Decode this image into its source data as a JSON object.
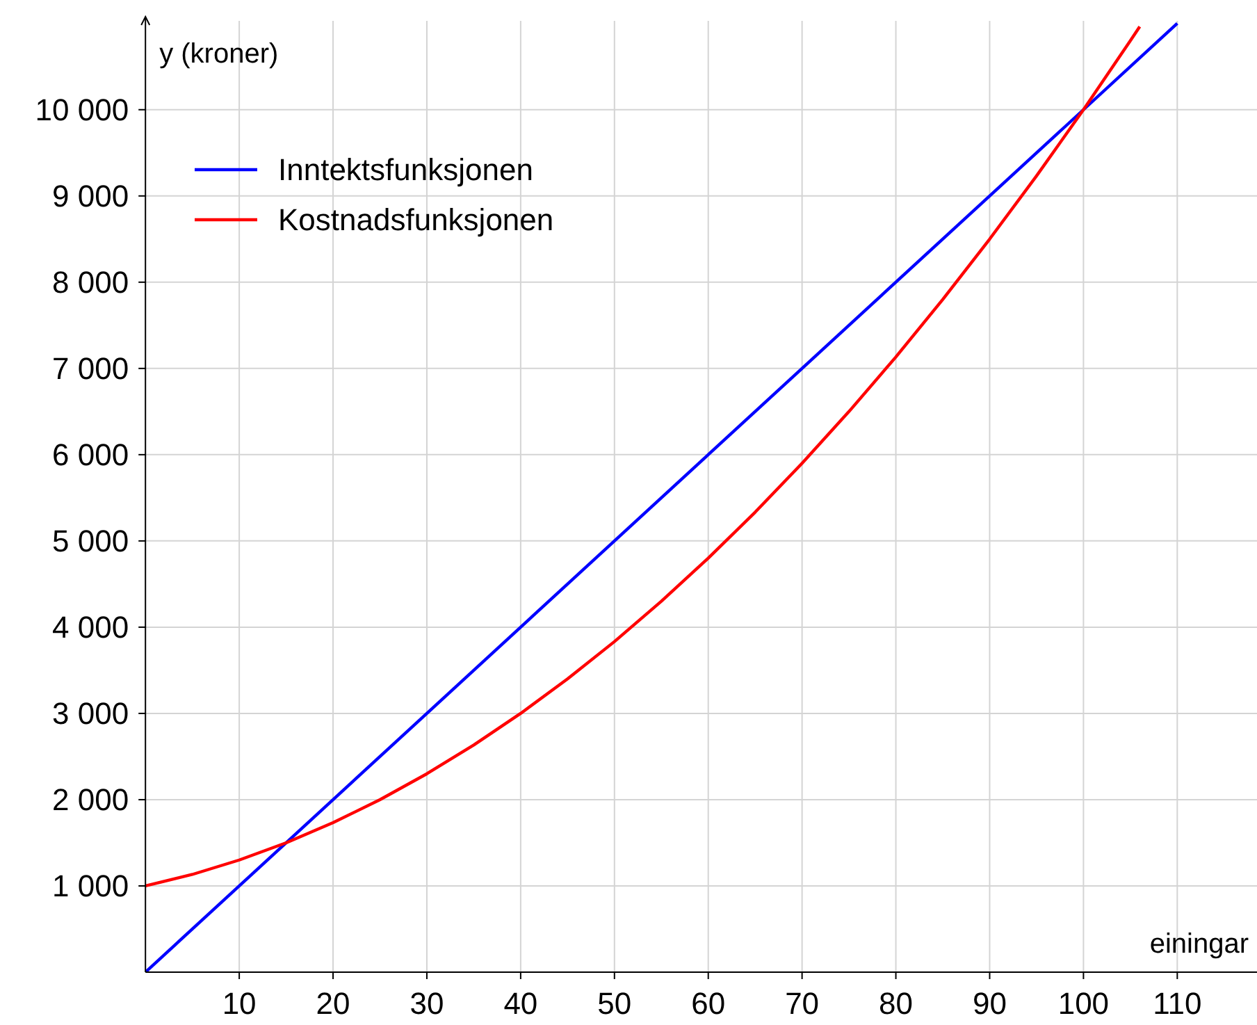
{
  "chart_data": {
    "type": "line",
    "xlabel": "einingar",
    "ylabel": "y  (kroner)",
    "xlim": [
      0,
      118.5
    ],
    "ylim": [
      0,
      11030
    ],
    "xticks": [
      10,
      20,
      30,
      40,
      50,
      60,
      70,
      80,
      90,
      100,
      110
    ],
    "yticks": [
      {
        "value": 1000,
        "label": "1 000"
      },
      {
        "value": 2000,
        "label": "2 000"
      },
      {
        "value": 3000,
        "label": "3 000"
      },
      {
        "value": 4000,
        "label": "4 000"
      },
      {
        "value": 5000,
        "label": "5 000"
      },
      {
        "value": 6000,
        "label": "6 000"
      },
      {
        "value": 7000,
        "label": "7 000"
      },
      {
        "value": 8000,
        "label": "8 000"
      },
      {
        "value": 9000,
        "label": "9 000"
      },
      {
        "value": 10000,
        "label": "10 000"
      }
    ],
    "grid": true,
    "legend": "top left",
    "marker": "none",
    "line_style": "solid",
    "series": [
      {
        "name": "Inntektsfunksjonen",
        "color": "#0000ff",
        "x": [
          0,
          110
        ],
        "values": [
          0,
          11000
        ]
      },
      {
        "name": "Kostnadsfunksjonen",
        "color": "#ff0000",
        "x": [
          0,
          5,
          10,
          15,
          20,
          25,
          30,
          35,
          40,
          45,
          50,
          55,
          60,
          65,
          70,
          75,
          80,
          85,
          90,
          95,
          100,
          105,
          106
        ],
        "values": [
          1000,
          1133,
          1300,
          1500,
          1733,
          2000,
          2300,
          2633,
          3000,
          3400,
          3833,
          4300,
          4800,
          5333,
          5900,
          6500,
          7133,
          7800,
          8500,
          9233,
          10000,
          10800,
          10964
        ]
      }
    ]
  }
}
